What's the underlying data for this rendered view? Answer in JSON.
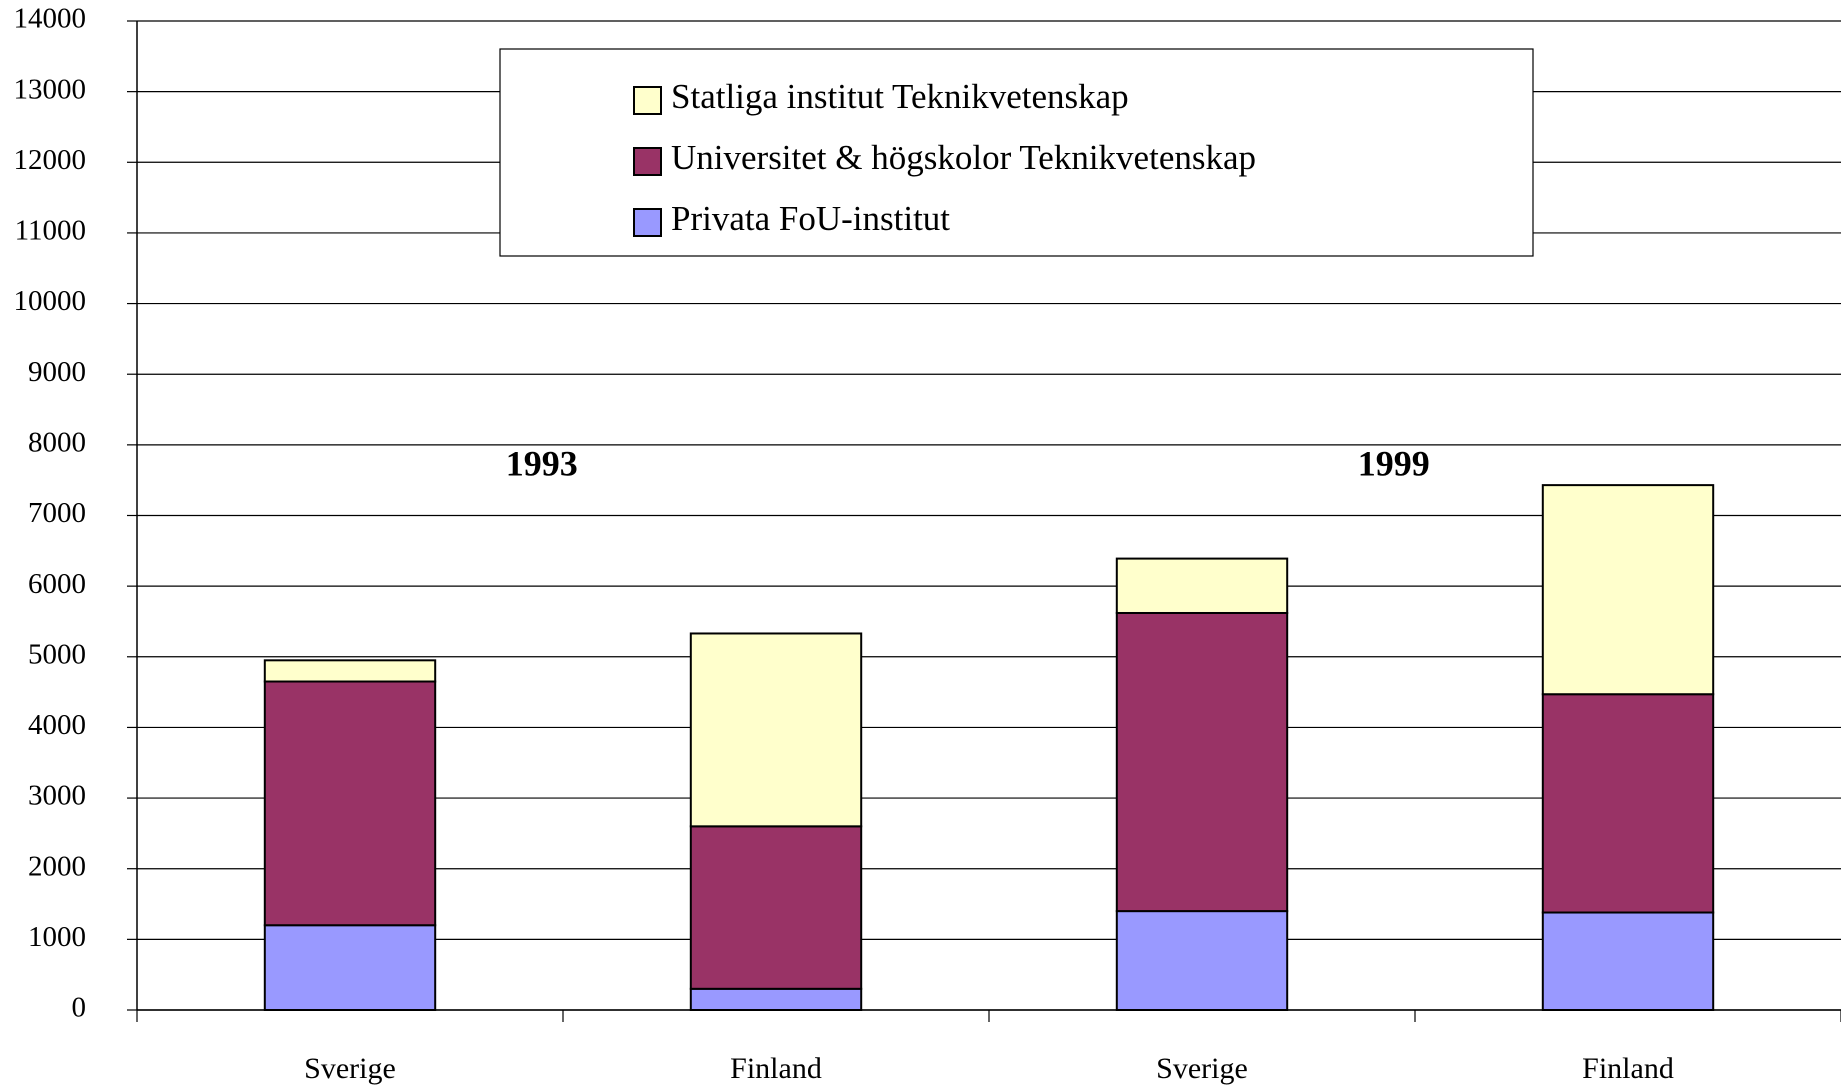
{
  "chart_data": {
    "type": "stacked_bar",
    "categories": [
      "Sverige",
      "Finland",
      "Sverige",
      "Finland"
    ],
    "series": [
      {
        "name": "Privata FoU-institut",
        "color": "#9999ff",
        "values": [
          1200,
          300,
          1400,
          1380
        ]
      },
      {
        "name": "Universitet & högskolor Teknikvetenskap",
        "color": "#993366",
        "values": [
          3450,
          2300,
          4220,
          3090
        ]
      },
      {
        "name": "Statliga institut Teknikvetenskap",
        "color": "#ffffcc",
        "values": [
          300,
          2730,
          770,
          2960
        ]
      }
    ],
    "annotations": [
      "1993",
      "1999"
    ],
    "ylim": [
      0,
      14000
    ],
    "yticks": [
      0,
      1000,
      2000,
      3000,
      4000,
      5000,
      6000,
      7000,
      8000,
      9000,
      10000,
      11000,
      12000,
      13000,
      14000
    ],
    "grid": true,
    "legend": "top"
  }
}
